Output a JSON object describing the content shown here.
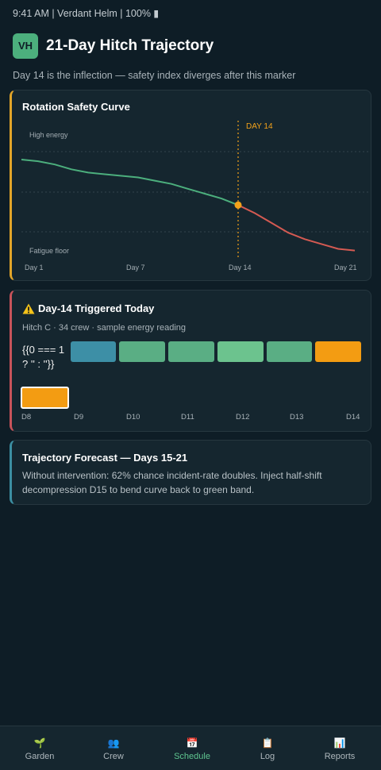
{
  "status_bar": {
    "text": "9:41 AM | Verdant Helm | 100% ▮"
  },
  "header": {
    "avatar": "VH",
    "title": "21-Day Hitch Trajectory"
  },
  "subtitle": "Day 14 is the inflection — safety index diverges after this marker",
  "curve_card": {
    "title": "Rotation Safety Curve",
    "top_label": "High energy",
    "bottom_label": "Fatigue floor",
    "marker_label": "DAY 14"
  },
  "chart_data": {
    "type": "line",
    "title": "Rotation Safety Curve",
    "x": [
      1,
      2,
      3,
      4,
      5,
      6,
      7,
      8,
      9,
      10,
      11,
      12,
      13,
      14,
      15,
      16,
      17,
      18,
      19,
      20,
      21
    ],
    "x_tick_labels": [
      "Day 1",
      "Day 7",
      "Day 14",
      "Day 21"
    ],
    "x_ticks": [
      1,
      7,
      14,
      21
    ],
    "series": [
      {
        "values": [
          0.82,
          0.81,
          0.79,
          0.76,
          0.74,
          0.73,
          0.72,
          0.71,
          0.69,
          0.67,
          0.64,
          0.61,
          0.58,
          0.54,
          0.49,
          0.43,
          0.37,
          0.33,
          0.3,
          0.27,
          0.26
        ]
      }
    ],
    "marker_x": 14,
    "segment_colors": {
      "before_marker": "#4caf7d",
      "after_marker": "#d45a52"
    },
    "marker_color": "#f3a21a",
    "ylim": [
      0.17,
      1.05
    ],
    "grid": true
  },
  "trigger_card": {
    "title": "Day-14 Triggered Today",
    "meta": "Hitch C · 34 crew · sample energy reading",
    "raw_text": "{{0 === 1 ? '' : ''}}",
    "blocks": [
      {
        "color": "#3d8fa6"
      },
      {
        "color": "#5aae84"
      },
      {
        "color": "#5aae84"
      },
      {
        "color": "#6cc38e"
      },
      {
        "color": "#5aae84"
      },
      {
        "color": "#f39c12"
      },
      {
        "color": "#f39c12",
        "selected": true
      }
    ],
    "day_labels": [
      "D8",
      "D9",
      "D10",
      "D11",
      "D12",
      "D13",
      "D14"
    ]
  },
  "forecast_card": {
    "title": "Trajectory Forecast — Days 15-21",
    "body": "Without intervention: 62% chance incident-rate doubles. Inject half-shift decompression D15 to bend curve back to green band."
  },
  "nav": {
    "items": [
      {
        "label": "Garden",
        "icon": "🌱",
        "icon_name": "sprout-icon"
      },
      {
        "label": "Crew",
        "icon": "👥",
        "icon_name": "crew-icon"
      },
      {
        "label": "Schedule",
        "icon": "📅",
        "icon_name": "calendar-icon",
        "active": true
      },
      {
        "label": "Log",
        "icon": "📋",
        "icon_name": "clipboard-icon"
      },
      {
        "label": "Reports",
        "icon": "📊",
        "icon_name": "bar-chart-icon"
      }
    ]
  }
}
